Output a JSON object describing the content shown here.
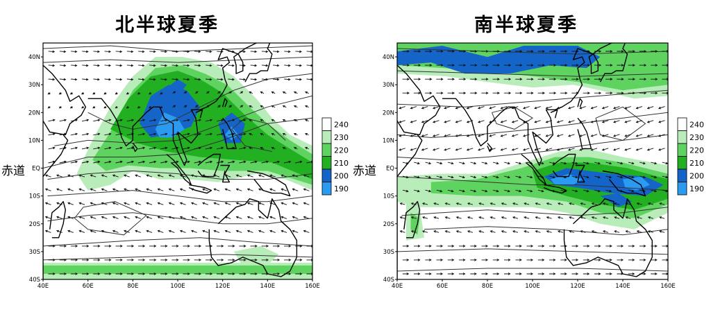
{
  "panels": [
    {
      "title": "北半球夏季",
      "eq_label": "赤道",
      "season": "northern-summer"
    },
    {
      "title": "南半球夏季",
      "eq_label": "赤道",
      "season": "southern-summer"
    }
  ],
  "lat_ticks": [
    "40N",
    "30N",
    "20N",
    "10N",
    "EQ",
    "10S",
    "20S",
    "30S",
    "40S"
  ],
  "lon_ticks": [
    "40E",
    "60E",
    "80E",
    "100E",
    "120E",
    "140E",
    "160E"
  ],
  "colorbar": {
    "values": [
      "240",
      "230",
      "220",
      "210",
      "200",
      "190"
    ],
    "colors": [
      "#ffffff",
      "#b8ecb8",
      "#5fd35f",
      "#22b022",
      "#1565c8",
      "#2a9bf0"
    ]
  },
  "map": {
    "lat_range": [
      -40,
      45
    ],
    "lon_range": [
      40,
      160
    ],
    "palette": {
      "c230": "#b8ecb8",
      "c220": "#5fd35f",
      "c210": "#22b022",
      "c200": "#1565c8",
      "c190": "#2a9bf0"
    }
  }
}
